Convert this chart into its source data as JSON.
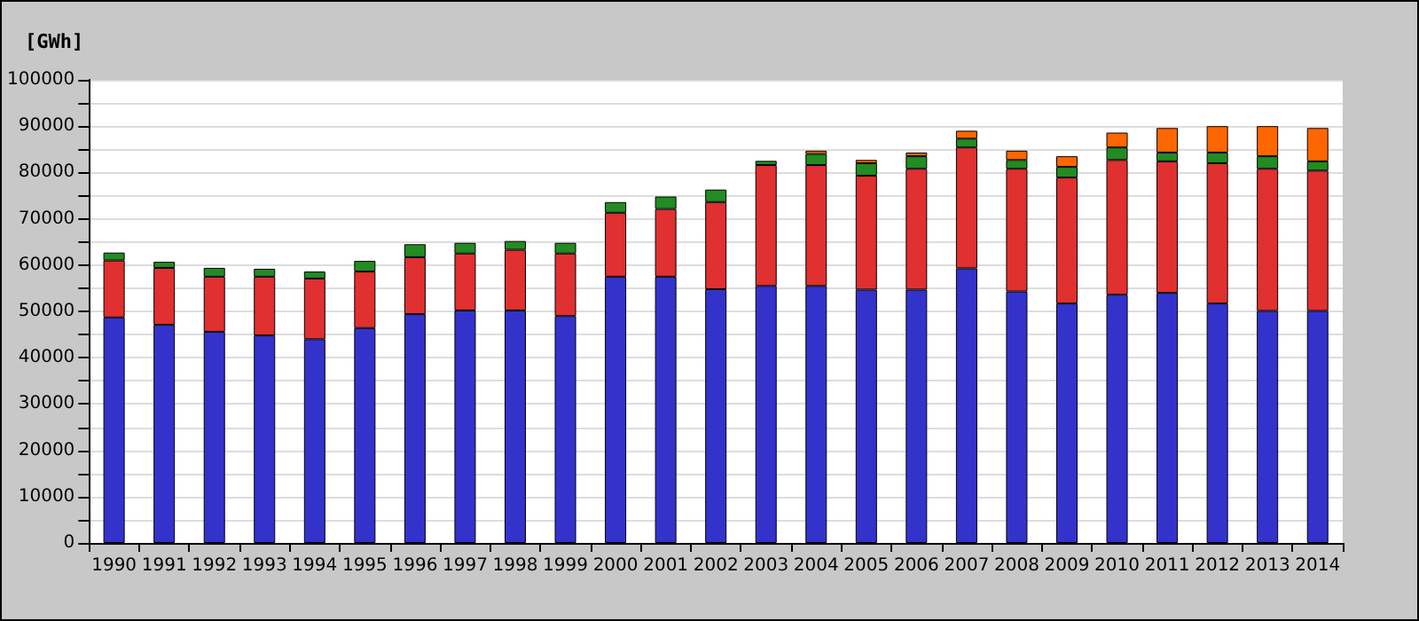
{
  "chart_data": {
    "type": "bar",
    "stacked": true,
    "ylabel": "[GWh]",
    "categories": [
      "1990",
      "1991",
      "1992",
      "1993",
      "1994",
      "1995",
      "1996",
      "1997",
      "1998",
      "1999",
      "2000",
      "2001",
      "2002",
      "2003",
      "2004",
      "2005",
      "2006",
      "2007",
      "2008",
      "2009",
      "2010",
      "2011",
      "2012",
      "2013",
      "2014"
    ],
    "series": [
      {
        "color": "#3333cc",
        "values": [
          48700,
          47100,
          45600,
          44800,
          44000,
          46400,
          49400,
          50200,
          50200,
          49000,
          57500,
          57500,
          54800,
          55500,
          55500,
          54700,
          54700,
          59300,
          54300,
          51700,
          53600,
          54000,
          51700,
          50100,
          50100
        ]
      },
      {
        "color": "#e03030",
        "values": [
          12300,
          12300,
          11900,
          12700,
          13100,
          12200,
          12300,
          12300,
          13100,
          13500,
          13800,
          14600,
          18800,
          26100,
          26100,
          24600,
          26100,
          26100,
          26500,
          27200,
          29100,
          28400,
          30300,
          30700,
          30300
        ]
      },
      {
        "color": "#228b22",
        "values": [
          1700,
          1300,
          1900,
          1700,
          1500,
          2300,
          2800,
          2300,
          1900,
          2300,
          2300,
          2700,
          2700,
          900,
          2400,
          2700,
          2700,
          1900,
          1900,
          2300,
          2700,
          1900,
          2300,
          2700,
          2000
        ]
      },
      {
        "color": "#ff6600",
        "values": [
          null,
          null,
          null,
          null,
          null,
          null,
          null,
          null,
          null,
          null,
          null,
          null,
          null,
          null,
          700,
          700,
          800,
          1700,
          2000,
          2300,
          3200,
          5300,
          5700,
          6500,
          7200
        ]
      }
    ],
    "ylim": [
      0,
      100000
    ],
    "yticks": [
      0,
      {
        "value": 5000,
        "label": null
      },
      10000,
      {
        "value": 15000,
        "label": null
      },
      20000,
      {
        "value": 25000,
        "label": null
      },
      30000,
      {
        "value": 35000,
        "label": null
      },
      40000,
      {
        "value": 45000,
        "label": null
      },
      50000,
      {
        "value": 55000,
        "label": null
      },
      60000,
      {
        "value": 65000,
        "label": null
      },
      70000,
      {
        "value": 75000,
        "label": null
      },
      80000,
      {
        "value": 85000,
        "label": null
      },
      90000,
      {
        "value": 95000,
        "label": null
      },
      100000
    ],
    "grid": "y"
  }
}
